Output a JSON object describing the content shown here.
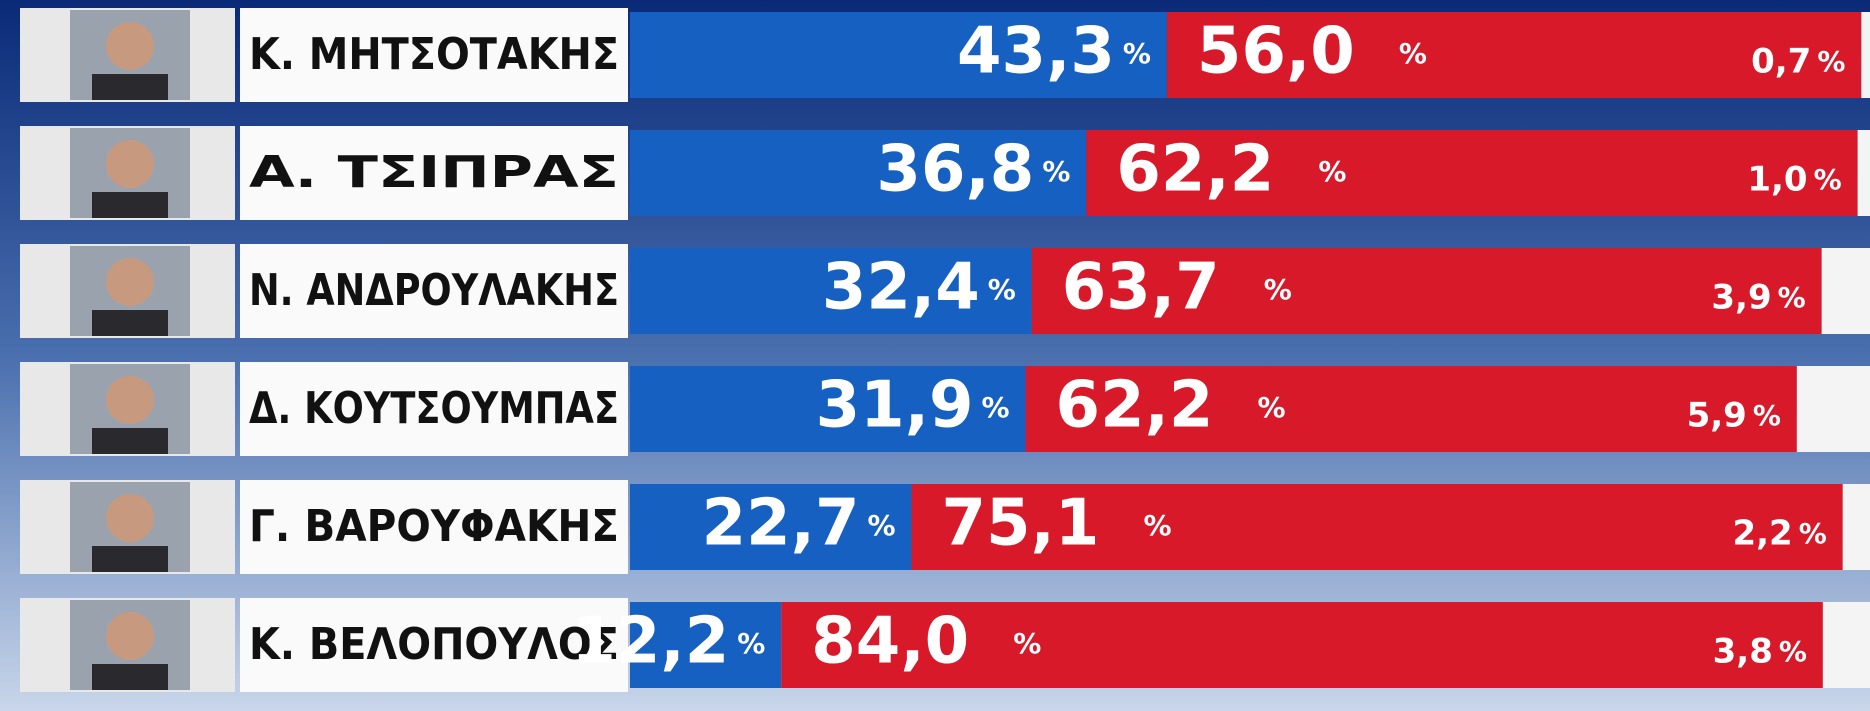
{
  "chart_data": {
    "type": "stacked-bar",
    "categories": [
      "Κ. ΜΗΤΣΟΤΑΚΗΣ",
      "Α. ΤΣΙΠΡΑΣ",
      "Ν. ΑΝΔΡΟΥΛΑΚΗΣ",
      "Δ. ΚΟΥΤΣΟΥΜΠΑΣ",
      "Γ. ΒΑΡΟΥΦΑΚΗΣ",
      "Κ. ΒΕΛΟΠΟΥΛΟΣ"
    ],
    "unit": "%",
    "series": [
      {
        "color": "#1560c0",
        "values": [
          43.3,
          36.8,
          32.4,
          31.9,
          22.7,
          12.2
        ],
        "value_labels": [
          "43,3",
          "36,8",
          "32,4",
          "31,9",
          "22,7",
          "12,2"
        ]
      },
      {
        "color": "#d8192a",
        "values": [
          56.0,
          62.2,
          63.7,
          62.2,
          75.1,
          84.0
        ],
        "value_labels": [
          "56,0",
          "62,2",
          "63,7",
          "62,2",
          "75,1",
          "84,0"
        ]
      },
      {
        "color": "#f4f4f4",
        "values": [
          0.7,
          1.0,
          3.9,
          5.9,
          2.2,
          3.8
        ],
        "value_labels": [
          "0,7",
          "1,0",
          "3,9",
          "5,9",
          "2,2",
          "3,8"
        ]
      }
    ]
  }
}
